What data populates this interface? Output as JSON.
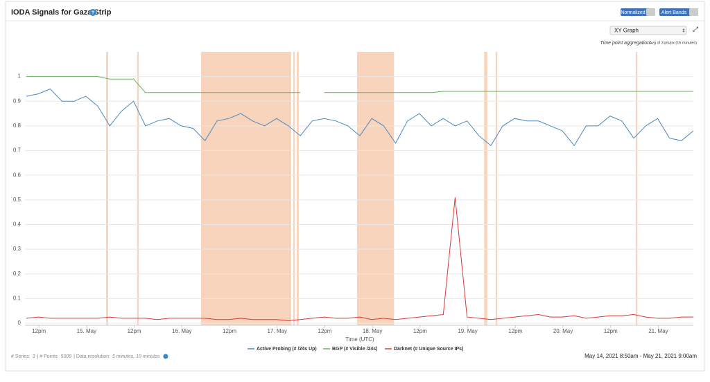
{
  "header": {
    "title": "IODA Signals for Gaza Strip",
    "buttons": [
      "Normalized",
      "Alert Bands"
    ]
  },
  "controls": {
    "view": "XY Graph",
    "aggregation_label": "Time point aggregation:",
    "aggregation_value": "Avg of 3 pts/px (15 minutes)"
  },
  "chart_data": {
    "type": "line",
    "xlabel": "Time (UTC)",
    "x": [
      0,
      3,
      6,
      9,
      12,
      15,
      18,
      21,
      24,
      27,
      30,
      33,
      36,
      39,
      42,
      45,
      48,
      51,
      54,
      57,
      60,
      63,
      66,
      69,
      72,
      75,
      78,
      81,
      84,
      87,
      90,
      93,
      96,
      99,
      102,
      105,
      108,
      111,
      114,
      117,
      120,
      123,
      126,
      129,
      132,
      135,
      138,
      141,
      144,
      147,
      150,
      153,
      156,
      159,
      162,
      165,
      168
    ],
    "xlim": [
      0,
      168
    ],
    "xticks": [
      {
        "value": 3.17,
        "label": "12pm"
      },
      {
        "value": 15.17,
        "label": "15. May"
      },
      {
        "value": 27.17,
        "label": "12pm"
      },
      {
        "value": 39.17,
        "label": "16. May"
      },
      {
        "value": 51.17,
        "label": "12pm"
      },
      {
        "value": 63.17,
        "label": "17. May"
      },
      {
        "value": 75.17,
        "label": "12pm"
      },
      {
        "value": 87.17,
        "label": "18. May"
      },
      {
        "value": 99.17,
        "label": "12pm"
      },
      {
        "value": 111.17,
        "label": "19. May"
      },
      {
        "value": 123.17,
        "label": "12pm"
      },
      {
        "value": 135.17,
        "label": "20. May"
      },
      {
        "value": 147.17,
        "label": "12pm"
      },
      {
        "value": 159.17,
        "label": "21. May"
      }
    ],
    "ylim": [
      0,
      1.1
    ],
    "yticks": [
      0,
      0.1,
      0.2,
      0.3,
      0.4,
      0.5,
      0.6,
      0.7,
      0.8,
      0.9,
      1
    ],
    "grid": true,
    "alert_bands": [
      [
        20.1,
        20.6
      ],
      [
        27.9,
        28.3
      ],
      [
        44.0,
        66.7
      ],
      [
        67.2,
        67.6
      ],
      [
        68.1,
        68.6
      ],
      [
        83.3,
        92.6
      ],
      [
        115.3,
        116.1
      ],
      [
        118.2,
        118.6
      ],
      [
        153.5,
        153.9
      ]
    ],
    "alert_color": "#f7cdb0",
    "series": [
      {
        "name": "Active Probing (# /24s Up)",
        "color": "#4a86c0",
        "values": [
          0.92,
          0.93,
          0.95,
          0.9,
          0.9,
          0.92,
          0.88,
          0.8,
          0.86,
          0.9,
          0.8,
          0.82,
          0.83,
          0.8,
          0.79,
          0.74,
          0.82,
          0.83,
          0.85,
          0.82,
          0.8,
          0.83,
          0.8,
          0.76,
          0.82,
          0.83,
          0.82,
          0.8,
          0.76,
          0.83,
          0.8,
          0.73,
          0.82,
          0.85,
          0.8,
          0.83,
          0.8,
          0.82,
          0.76,
          0.72,
          0.8,
          0.83,
          0.82,
          0.82,
          0.8,
          0.78,
          0.72,
          0.8,
          0.8,
          0.84,
          0.82,
          0.75,
          0.8,
          0.83,
          0.75,
          0.74,
          0.78
        ]
      },
      {
        "name": "BGP (# Visible /24s)",
        "color": "#63b35b",
        "values": [
          1,
          1,
          1,
          1,
          1,
          1,
          1,
          0.99,
          0.99,
          0.99,
          0.935,
          0.935,
          0.935,
          0.935,
          0.935,
          0.935,
          0.935,
          0.935,
          0.935,
          0.935,
          0.935,
          0.935,
          0.935,
          0.935,
          null,
          0.935,
          0.935,
          0.935,
          0.935,
          0.935,
          0.935,
          0.935,
          0.935,
          0.935,
          0.935,
          0.94,
          0.94,
          0.94,
          0.94,
          0.94,
          0.94,
          0.94,
          0.94,
          0.94,
          0.94,
          0.94,
          0.94,
          0.94,
          0.94,
          0.94,
          0.94,
          0.94,
          0.94,
          0.94,
          0.94,
          0.94,
          0.94
        ]
      },
      {
        "name": "Darknet (# Unique Source IPs)",
        "color": "#d9383a",
        "values": [
          0.02,
          0.025,
          0.02,
          0.02,
          0.02,
          0.02,
          0.02,
          0.025,
          0.02,
          0.02,
          0.02,
          0.015,
          0.02,
          0.02,
          0.02,
          0.02,
          0.015,
          0.015,
          0.02,
          0.015,
          0.015,
          0.015,
          0.01,
          0.015,
          0.02,
          0.025,
          0.02,
          0.02,
          0.025,
          0.015,
          0.02,
          0.015,
          0.02,
          0.025,
          0.03,
          0.035,
          0.51,
          0.025,
          0.02,
          0.015,
          0.02,
          0.025,
          0.03,
          0.035,
          0.025,
          0.025,
          0.03,
          0.02,
          0.025,
          0.03,
          0.03,
          0.035,
          0.025,
          0.02,
          0.02,
          0.025,
          0.025
        ]
      }
    ]
  },
  "footer": {
    "stats": [
      "# Series:",
      "3",
      "| # Points:",
      "5009",
      "| Data resolution:",
      "5 minutes, 10 minutes"
    ],
    "range": "May 14, 2021 8:50am - May 21, 2021 9:00am"
  }
}
